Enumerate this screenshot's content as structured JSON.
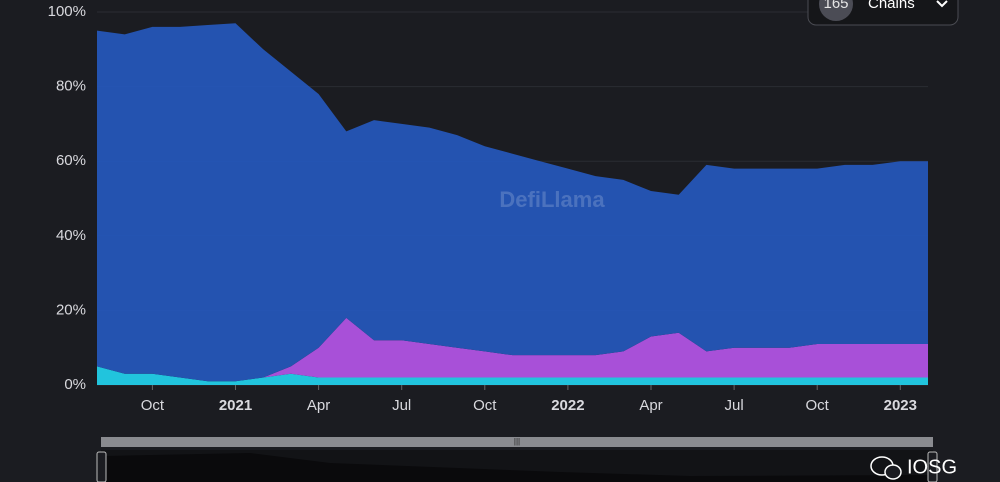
{
  "chart_data": {
    "type": "area",
    "stacked": true,
    "x": [
      "2020-08",
      "2020-09",
      "2020-10",
      "2020-11",
      "2020-12",
      "2021-01",
      "2021-02",
      "2021-03",
      "2021-04",
      "2021-05",
      "2021-06",
      "2021-07",
      "2021-08",
      "2021-09",
      "2021-10",
      "2021-11",
      "2021-12",
      "2022-01",
      "2022-02",
      "2022-03",
      "2022-04",
      "2022-05",
      "2022-06",
      "2022-07",
      "2022-08",
      "2022-09",
      "2022-10",
      "2022-11",
      "2022-12",
      "2023-01",
      "2023-02"
    ],
    "series": [
      {
        "color": "#22d3ee",
        "values": [
          5,
          3,
          3,
          2,
          1,
          1,
          2,
          3,
          2,
          2,
          2,
          2,
          2,
          2,
          2,
          2,
          2,
          2,
          2,
          2,
          2,
          2,
          2,
          2,
          2,
          2,
          2,
          2,
          2,
          2,
          2
        ]
      },
      {
        "color": "#b455e8",
        "values": [
          0,
          0,
          0,
          0,
          0,
          0,
          0,
          2,
          8,
          16,
          10,
          10,
          9,
          8,
          7,
          6,
          6,
          6,
          6,
          7,
          11,
          12,
          7,
          8,
          8,
          8,
          9,
          9,
          9,
          9,
          9
        ]
      },
      {
        "color": "#2558bd",
        "values": [
          90,
          91,
          93,
          94,
          95.5,
          96,
          88,
          79,
          68,
          50,
          59,
          58,
          58,
          57,
          55,
          54,
          52,
          50,
          48,
          46,
          39,
          37,
          50,
          48,
          48,
          48,
          47,
          48,
          48,
          49,
          49
        ]
      }
    ],
    "xlim": [
      "2020-08",
      "2023-02"
    ],
    "xticks": [
      {
        "value": "2020-10",
        "label": "Oct"
      },
      {
        "value": "2021-01",
        "label": "2021"
      },
      {
        "value": "2021-04",
        "label": "Apr"
      },
      {
        "value": "2021-07",
        "label": "Jul"
      },
      {
        "value": "2021-10",
        "label": "Oct"
      },
      {
        "value": "2022-01",
        "label": "2022"
      },
      {
        "value": "2022-04",
        "label": "Apr"
      },
      {
        "value": "2022-07",
        "label": "Jul"
      },
      {
        "value": "2022-10",
        "label": "Oct"
      },
      {
        "value": "2023-01",
        "label": "2023"
      }
    ],
    "ylim": [
      0,
      100
    ],
    "yticks": [
      {
        "value": 0,
        "label": "0%"
      },
      {
        "value": 20,
        "label": "20%"
      },
      {
        "value": 40,
        "label": "40%"
      },
      {
        "value": 60,
        "label": "60%"
      },
      {
        "value": 80,
        "label": "80%"
      },
      {
        "value": 100,
        "label": "100%"
      }
    ],
    "grid": true
  },
  "ui": {
    "chain_count": "165",
    "chain_label": "Chains",
    "watermark": "DefiLlama",
    "credit": "IOSG"
  }
}
